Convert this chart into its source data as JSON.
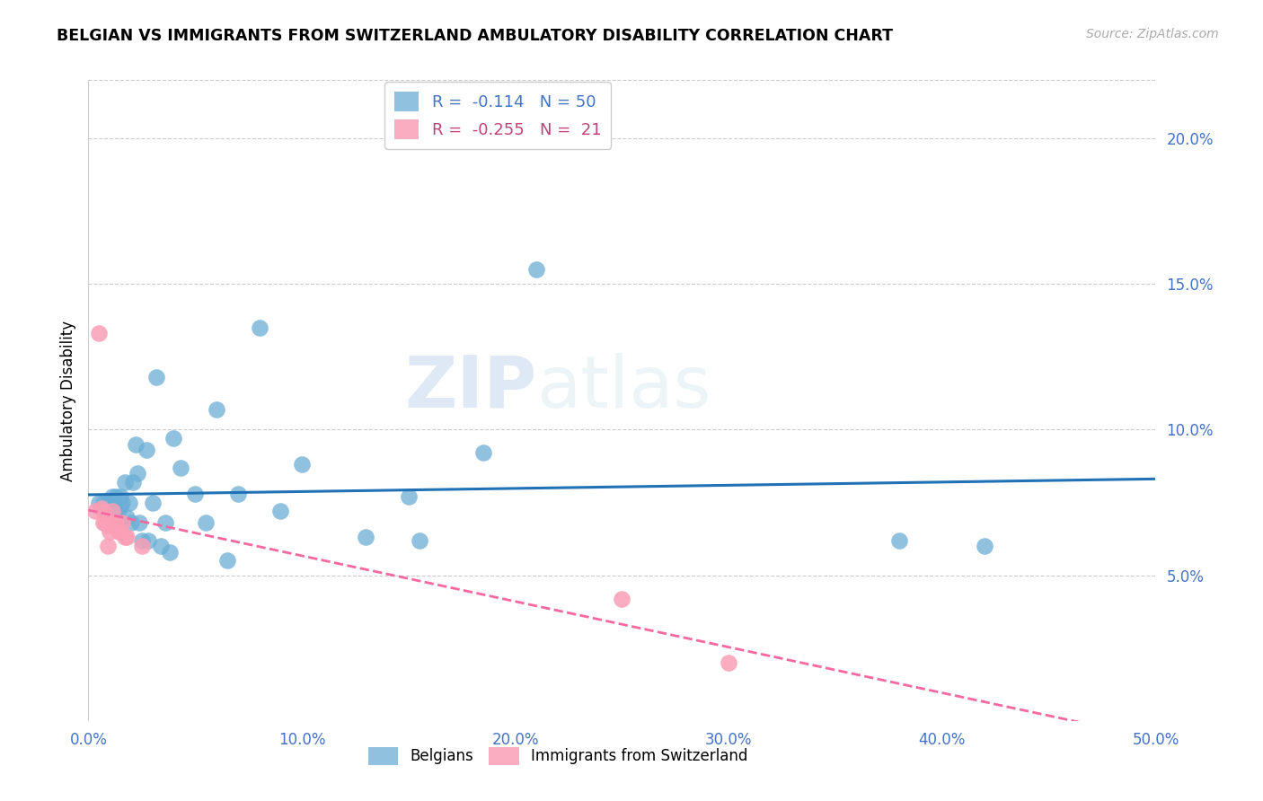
{
  "title": "BELGIAN VS IMMIGRANTS FROM SWITZERLAND AMBULATORY DISABILITY CORRELATION CHART",
  "source": "Source: ZipAtlas.com",
  "ylabel": "Ambulatory Disability",
  "xlim": [
    0.0,
    0.5
  ],
  "ylim": [
    0.0,
    0.22
  ],
  "xticks": [
    0.0,
    0.1,
    0.2,
    0.3,
    0.4,
    0.5
  ],
  "xticklabels": [
    "0.0%",
    "10.0%",
    "20.0%",
    "30.0%",
    "40.0%",
    "50.0%"
  ],
  "yticks_right": [
    0.05,
    0.1,
    0.15,
    0.2
  ],
  "ytick_right_labels": [
    "5.0%",
    "10.0%",
    "15.0%",
    "20.0%"
  ],
  "blue_color": "#6baed6",
  "pink_color": "#fa9fb5",
  "blue_line_color": "#2171b5",
  "pink_line_color": "#f768a1",
  "axis_label_color": "#4472c4",
  "legend_R_blue": "-0.114",
  "legend_N_blue": "50",
  "legend_R_pink": "-0.255",
  "legend_N_pink": "21",
  "belgians_x": [
    0.005,
    0.007,
    0.008,
    0.009,
    0.01,
    0.01,
    0.011,
    0.011,
    0.012,
    0.012,
    0.013,
    0.013,
    0.014,
    0.014,
    0.015,
    0.015,
    0.016,
    0.017,
    0.018,
    0.019,
    0.02,
    0.021,
    0.022,
    0.023,
    0.024,
    0.025,
    0.027,
    0.028,
    0.03,
    0.032,
    0.034,
    0.036,
    0.038,
    0.04,
    0.043,
    0.05,
    0.055,
    0.06,
    0.065,
    0.07,
    0.08,
    0.09,
    0.1,
    0.13,
    0.15,
    0.155,
    0.185,
    0.21,
    0.38,
    0.42
  ],
  "belgians_y": [
    0.075,
    0.075,
    0.072,
    0.075,
    0.072,
    0.075,
    0.077,
    0.073,
    0.074,
    0.072,
    0.077,
    0.073,
    0.072,
    0.069,
    0.077,
    0.074,
    0.075,
    0.082,
    0.07,
    0.075,
    0.068,
    0.082,
    0.095,
    0.085,
    0.068,
    0.062,
    0.093,
    0.062,
    0.075,
    0.118,
    0.06,
    0.068,
    0.058,
    0.097,
    0.087,
    0.078,
    0.068,
    0.107,
    0.055,
    0.078,
    0.135,
    0.072,
    0.088,
    0.063,
    0.077,
    0.062,
    0.092,
    0.155,
    0.062,
    0.06
  ],
  "swiss_x": [
    0.003,
    0.005,
    0.006,
    0.007,
    0.007,
    0.008,
    0.009,
    0.009,
    0.01,
    0.01,
    0.011,
    0.012,
    0.013,
    0.014,
    0.015,
    0.016,
    0.017,
    0.018,
    0.025,
    0.25,
    0.3
  ],
  "swiss_y": [
    0.072,
    0.133,
    0.073,
    0.072,
    0.068,
    0.068,
    0.067,
    0.06,
    0.068,
    0.065,
    0.072,
    0.068,
    0.068,
    0.065,
    0.065,
    0.068,
    0.063,
    0.063,
    0.06,
    0.042,
    0.02
  ]
}
